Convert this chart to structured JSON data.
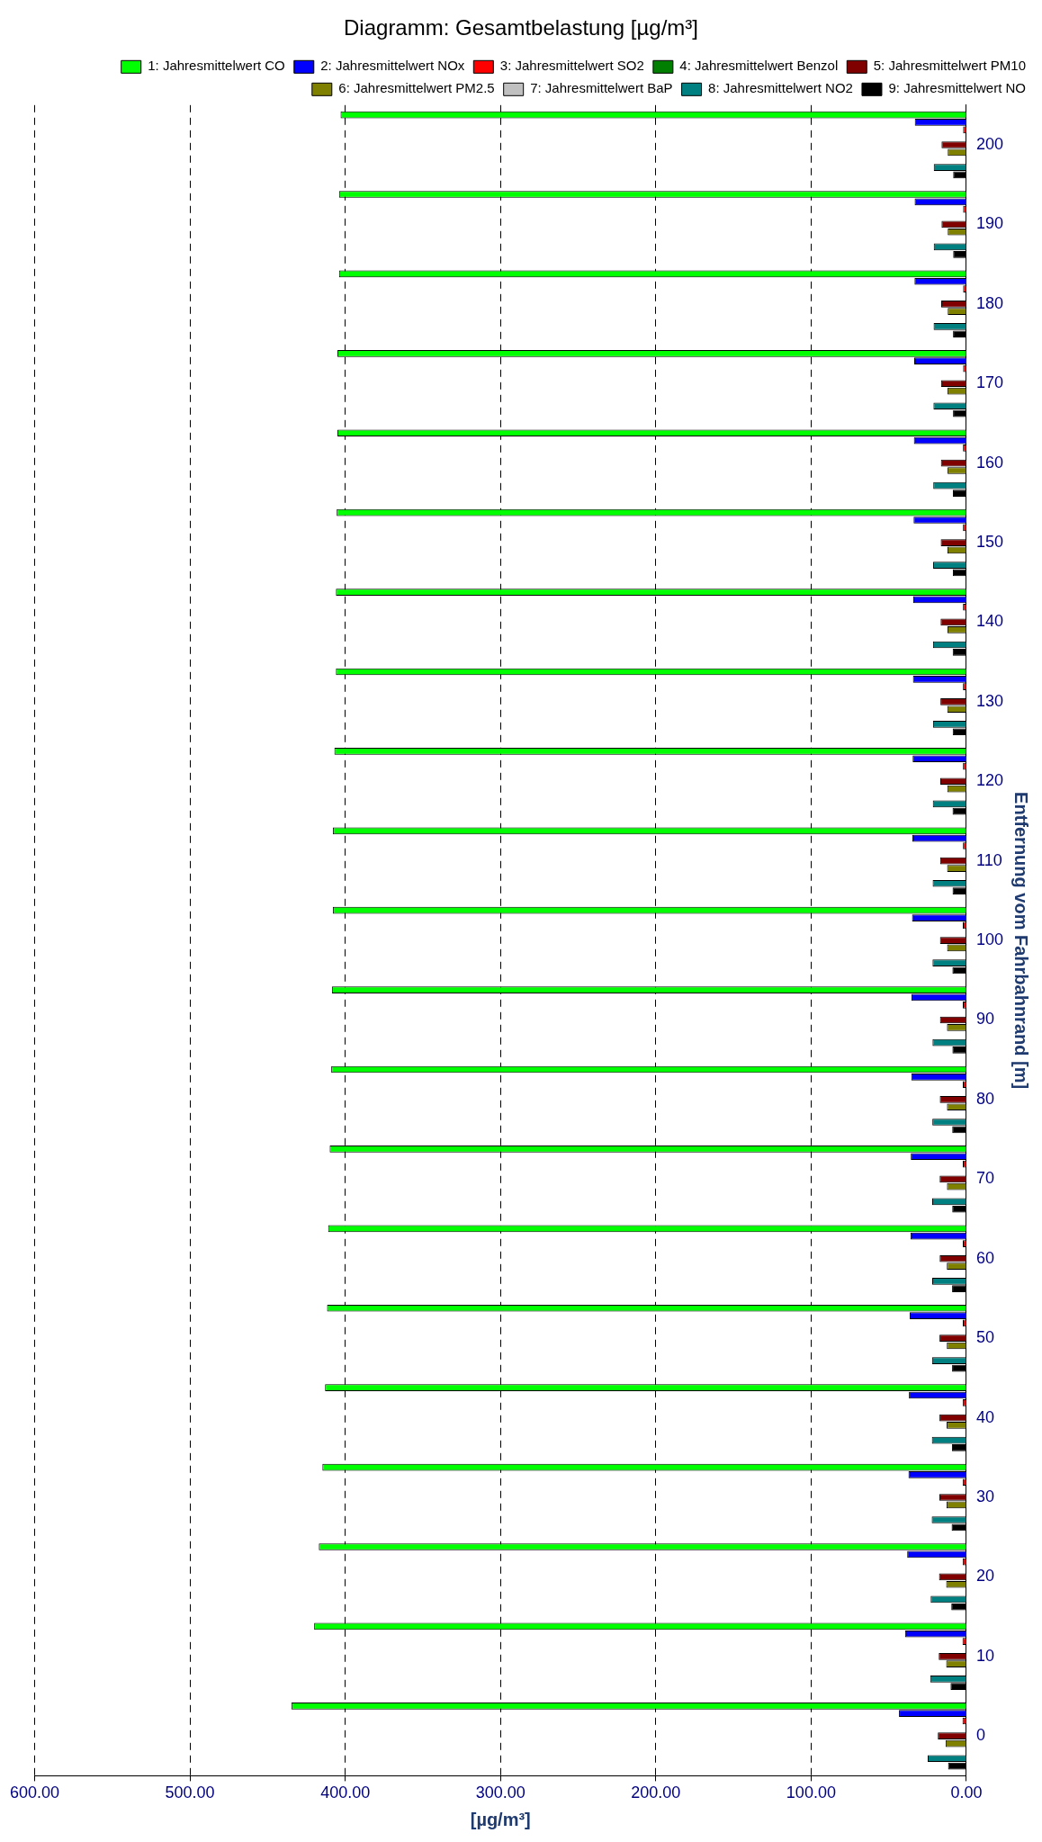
{
  "chart_data": {
    "type": "bar",
    "orientation": "horizontal",
    "title": "Diagramm: Gesamtbelastung [µg/m³]",
    "xlabel": "[µg/m³]",
    "ylabel": "Entfernung vom Fahrbahnrand [m]",
    "categories": [
      "200",
      "190",
      "180",
      "170",
      "160",
      "150",
      "140",
      "130",
      "120",
      "110",
      "100",
      "90",
      "80",
      "70",
      "60",
      "50",
      "40",
      "30",
      "20",
      "10",
      "0"
    ],
    "xlim": [
      600,
      0
    ],
    "xticks": [
      {
        "value": 600,
        "label": "600.00"
      },
      {
        "value": 500,
        "label": "500.00"
      },
      {
        "value": 400,
        "label": "400.00"
      },
      {
        "value": 300,
        "label": "300.00"
      },
      {
        "value": 200,
        "label": "200.00"
      },
      {
        "value": 100,
        "label": "100.00"
      },
      {
        "value": 0,
        "label": "0.00"
      }
    ],
    "grid": "x",
    "legend": "top right",
    "series": [
      {
        "name": "1: Jahresmittelwert CO",
        "color": "#00ff00",
        "values": [
          403,
          404,
          404,
          405,
          405,
          405.5,
          406,
          406,
          407,
          408,
          408,
          408.6,
          409,
          410,
          411,
          411.7,
          413,
          414.7,
          417,
          420,
          434.7
        ]
      },
      {
        "name": "2: Jahresmittelwert NOx",
        "color": "#0000ff",
        "values": [
          33.2,
          33.3,
          33.4,
          33.6,
          33.8,
          34,
          34.2,
          34.4,
          34.6,
          34.8,
          35,
          35.3,
          35.5,
          35.8,
          36,
          36.5,
          37,
          37.3,
          38.1,
          39.5,
          43.4
        ]
      },
      {
        "name": "3: Jahresmittelwert SO2",
        "color": "#ff0000",
        "values": [
          2.1,
          2.1,
          2.1,
          2.1,
          2.2,
          2.2,
          2.2,
          2.2,
          2.2,
          2.2,
          2.3,
          2.3,
          2.3,
          2.3,
          2.3,
          2.3,
          2.4,
          2.4,
          2.4,
          2.5,
          2.5
        ]
      },
      {
        "name": "4: Jahresmittelwert Benzol",
        "color": "#007f00",
        "values": [
          0,
          0,
          0,
          0,
          0,
          0,
          0,
          0,
          0,
          0,
          0,
          0,
          0,
          0,
          0,
          0,
          0,
          0,
          0,
          0,
          0
        ]
      },
      {
        "name": "5: Jahresmittelwert PM10",
        "color": "#800000",
        "values": [
          16,
          16,
          16.2,
          16.3,
          16.4,
          16.5,
          16.6,
          16.7,
          16.8,
          16.9,
          17,
          17,
          17.1,
          17.2,
          17.2,
          17.3,
          17.3,
          17.4,
          17.6,
          17.8,
          18.4
        ]
      },
      {
        "name": "6: Jahresmittelwert PM2.5",
        "color": "#808000",
        "values": [
          12,
          12,
          12,
          12.1,
          12.1,
          12.2,
          12.2,
          12.3,
          12.3,
          12.4,
          12.4,
          12.5,
          12.5,
          12.5,
          12.6,
          12.6,
          12.7,
          12.8,
          13,
          13,
          13.4
        ]
      },
      {
        "name": "7: Jahresmittelwert BaP",
        "color": "#c0c0c0",
        "values": [
          0,
          0,
          0,
          0,
          0,
          0,
          0,
          0,
          0,
          0,
          0,
          0,
          0,
          0,
          0,
          0,
          0,
          0,
          0,
          0,
          0
        ]
      },
      {
        "name": "8: Jahresmittelwert NO2",
        "color": "#008080",
        "values": [
          21,
          21,
          21.1,
          21.2,
          21.3,
          21.4,
          21.5,
          21.5,
          21.6,
          21.7,
          21.8,
          21.8,
          21.9,
          22,
          22,
          22.1,
          22.2,
          22.3,
          23,
          23.3,
          24.9
        ]
      },
      {
        "name": "9: Jahresmittelwert NO",
        "color": "#000000",
        "values": [
          8.5,
          8.5,
          8.6,
          8.6,
          8.7,
          8.7,
          8.8,
          8.8,
          8.9,
          8.9,
          9,
          9,
          9.1,
          9.1,
          9.2,
          9.2,
          9.3,
          9.5,
          9.7,
          10.2,
          11.8
        ]
      }
    ]
  }
}
